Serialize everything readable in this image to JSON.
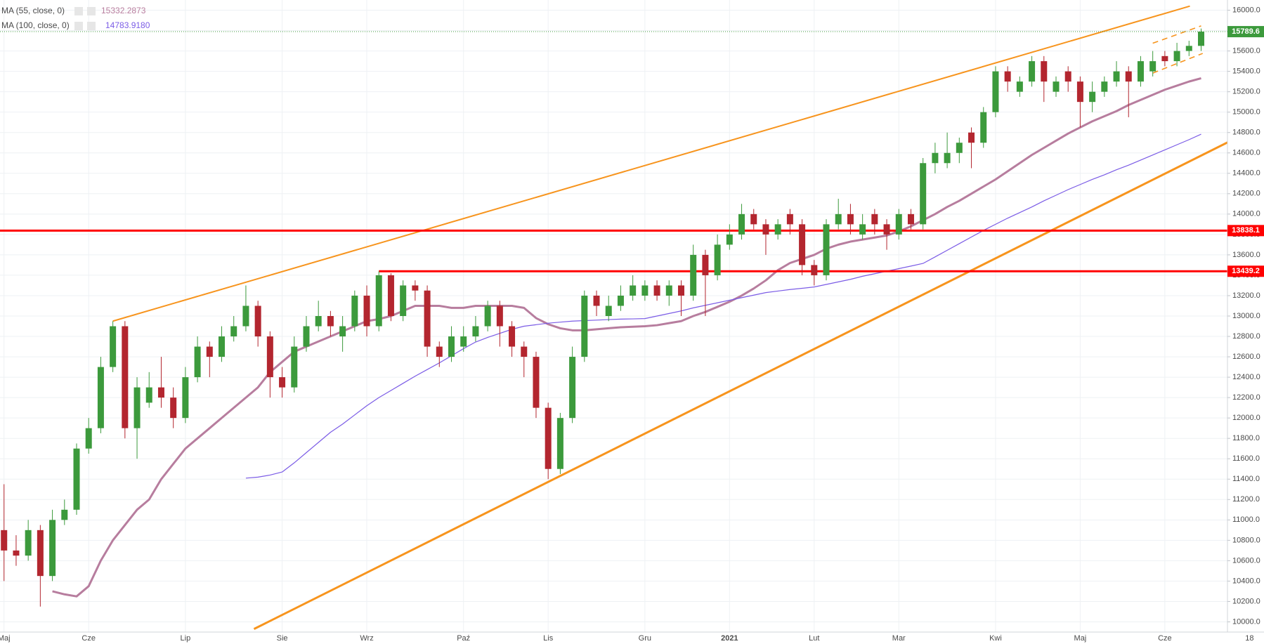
{
  "chart_data": {
    "type": "candlestick",
    "categories": [
      "Maj",
      null,
      null,
      null,
      null,
      null,
      null,
      "Cze",
      null,
      null,
      null,
      null,
      null,
      null,
      null,
      "Lip",
      null,
      null,
      null,
      null,
      null,
      null,
      null,
      "Sie",
      null,
      null,
      null,
      null,
      null,
      null,
      "Wrz",
      null,
      null,
      null,
      null,
      null,
      null,
      null,
      "Paź",
      null,
      null,
      null,
      null,
      null,
      null,
      "Lis",
      null,
      null,
      null,
      null,
      null,
      null,
      null,
      "Gru",
      null,
      null,
      null,
      null,
      null,
      null,
      "2021",
      null,
      null,
      null,
      null,
      null,
      null,
      "Lut",
      null,
      null,
      null,
      null,
      null,
      null,
      "Mar",
      null,
      null,
      null,
      null,
      null,
      null,
      null,
      "Kwi",
      null,
      null,
      null,
      null,
      null,
      null,
      "Maj",
      null,
      null,
      null,
      null,
      null,
      null,
      "Cze",
      null,
      null,
      null,
      null,
      null,
      null,
      "18"
    ],
    "open": [
      10900,
      10700,
      10650,
      10900,
      10450,
      11000,
      11100,
      11700,
      11900,
      12500,
      12900,
      11900,
      12150,
      12300,
      12200,
      12000,
      12400,
      12700,
      12600,
      12800,
      12900,
      13100,
      12800,
      12400,
      12300,
      12700,
      12900,
      13000,
      12800,
      12900,
      13200,
      12900,
      13400,
      13000,
      13300,
      13250,
      12700,
      12600,
      12700,
      12800,
      12900,
      13100,
      12900,
      12700,
      12600,
      12100,
      11500,
      12000,
      12600,
      13200,
      13000,
      13100,
      13200,
      13200,
      13300,
      13200,
      13300,
      13200,
      13600,
      13400,
      13700,
      13800,
      14000,
      13900,
      13800,
      14000,
      13900,
      13500,
      13400,
      13900,
      14000,
      13800,
      14000,
      13900,
      13800,
      14000,
      13900,
      14500,
      14500,
      14600,
      14800,
      14700,
      15000,
      15400,
      15200,
      15300,
      15500,
      15200,
      15400,
      15300,
      15100,
      15200,
      15300,
      15400,
      15300,
      15400,
      15550,
      15500,
      15600,
      15650,
      null,
      null,
      null,
      null
    ],
    "high": [
      11350,
      10850,
      11000,
      10950,
      11100,
      11200,
      11750,
      12000,
      12600,
      12950,
      12950,
      12400,
      12450,
      12600,
      12300,
      12500,
      12800,
      12750,
      12900,
      13000,
      13300,
      13150,
      12850,
      12500,
      12800,
      13000,
      13150,
      13050,
      13000,
      13250,
      13300,
      13439.2,
      13420,
      13350,
      13350,
      13300,
      12750,
      12900,
      12900,
      13000,
      13150,
      13150,
      12950,
      12750,
      12650,
      12150,
      12050,
      12700,
      13250,
      13250,
      13200,
      13300,
      13400,
      13350,
      13350,
      13350,
      13350,
      13700,
      13650,
      13800,
      13900,
      14100,
      14050,
      13950,
      13950,
      14050,
      13950,
      13550,
      13950,
      14150,
      14100,
      14000,
      14050,
      13950,
      14050,
      14050,
      14550,
      14700,
      14800,
      14750,
      14850,
      15050,
      15450,
      15450,
      15350,
      15550,
      15550,
      15350,
      15450,
      15350,
      15300,
      15350,
      15500,
      15450,
      15550,
      15600,
      15600,
      15680,
      15700,
      15820,
      null,
      null,
      null,
      null
    ],
    "low": [
      10400,
      10550,
      10600,
      10150,
      10400,
      10950,
      11050,
      11650,
      11850,
      12450,
      11800,
      11600,
      12100,
      12100,
      11900,
      11950,
      12350,
      12400,
      12550,
      12750,
      12850,
      12700,
      12200,
      12200,
      12250,
      12650,
      12850,
      12800,
      12650,
      12850,
      12800,
      12850,
      12950,
      12950,
      13150,
      12600,
      12500,
      12550,
      12650,
      12750,
      12850,
      12700,
      12600,
      12400,
      12000,
      11400,
      11450,
      11950,
      12550,
      13000,
      12950,
      13050,
      13150,
      13150,
      13150,
      13100,
      13000,
      13150,
      13000,
      13350,
      13650,
      13750,
      13850,
      13600,
      13750,
      13800,
      13400,
      13300,
      13350,
      13850,
      13800,
      13750,
      13800,
      13650,
      13750,
      13850,
      13850,
      14400,
      14450,
      14500,
      14450,
      14650,
      14950,
      15200,
      15150,
      15250,
      15100,
      15150,
      15200,
      14850,
      15000,
      15150,
      15250,
      14950,
      15250,
      15350,
      15450,
      15450,
      15550,
      15600,
      null,
      null,
      null,
      null
    ],
    "close": [
      10700,
      10650,
      10900,
      10450,
      11000,
      11100,
      11700,
      11900,
      12500,
      12900,
      11900,
      12300,
      12300,
      12200,
      12000,
      12400,
      12700,
      12600,
      12800,
      12900,
      13100,
      12800,
      12400,
      12300,
      12700,
      12900,
      13000,
      12900,
      12900,
      13200,
      12900,
      13400,
      13000,
      13300,
      13250,
      12700,
      12600,
      12800,
      12800,
      12900,
      13100,
      12900,
      12700,
      12600,
      12100,
      11500,
      12000,
      12600,
      13200,
      13100,
      13100,
      13200,
      13300,
      13300,
      13200,
      13300,
      13200,
      13600,
      13400,
      13700,
      13800,
      14000,
      13900,
      13800,
      13900,
      13900,
      13500,
      13400,
      13900,
      14000,
      13900,
      13900,
      13900,
      13800,
      14000,
      13900,
      14500,
      14600,
      14600,
      14700,
      14700,
      15000,
      15400,
      15300,
      15300,
      15500,
      15300,
      15300,
      15300,
      15100,
      15200,
      15300,
      15400,
      15300,
      15500,
      15500,
      15500,
      15600,
      15650,
      15789.6,
      null,
      null,
      null,
      null
    ],
    "up_color": "#3c9a3c",
    "down_color": "#b3262f",
    "ylim": [
      9900,
      16100
    ],
    "yticks": [
      {
        "value": 10000,
        "label": "10000.0"
      },
      {
        "value": 10200,
        "label": "10200.0"
      },
      {
        "value": 10400,
        "label": "10400.0"
      },
      {
        "value": 10600,
        "label": "10600.0"
      },
      {
        "value": 10800,
        "label": "10800.0"
      },
      {
        "value": 11000,
        "label": "11000.0"
      },
      {
        "value": 11200,
        "label": "11200.0"
      },
      {
        "value": 11400,
        "label": "11400.0"
      },
      {
        "value": 11600,
        "label": "11600.0"
      },
      {
        "value": 11800,
        "label": "11800.0"
      },
      {
        "value": 12000,
        "label": "12000.0"
      },
      {
        "value": 12200,
        "label": "12200.0"
      },
      {
        "value": 12400,
        "label": "12400.0"
      },
      {
        "value": 12600,
        "label": "12600.0"
      },
      {
        "value": 12800,
        "label": "12800.0"
      },
      {
        "value": 13000,
        "label": "13000.0"
      },
      {
        "value": 13200,
        "label": "13200.0"
      },
      {
        "value": 13400,
        "label": "13400.0"
      },
      {
        "value": 13600,
        "label": "13600.0"
      },
      {
        "value": 13800,
        "label": "13800.0"
      },
      {
        "value": 14000,
        "label": "14000.0"
      },
      {
        "value": 14200,
        "label": "14200.0"
      },
      {
        "value": 14400,
        "label": "14400.0"
      },
      {
        "value": 14600,
        "label": "14600.0"
      },
      {
        "value": 14800,
        "label": "14800.0"
      },
      {
        "value": 15000,
        "label": "15000.0"
      },
      {
        "value": 15200,
        "label": "15200.0"
      },
      {
        "value": 15400,
        "label": "15400.0"
      },
      {
        "value": 15600,
        "label": "15600.0"
      },
      {
        "value": 15800,
        "label": "15800.0"
      },
      {
        "value": 16000,
        "label": "16000.0"
      }
    ],
    "grid": true,
    "series": [
      {
        "name": "MA (55, close, 0)",
        "color": "#b77d9e",
        "values": [
          null,
          null,
          null,
          null,
          10300,
          10270,
          10250,
          10350,
          10600,
          10800,
          10950,
          11100,
          11200,
          11400,
          11550,
          11700,
          11800,
          11900,
          12000,
          12100,
          12200,
          12300,
          12450,
          12550,
          12650,
          12700,
          12750,
          12800,
          12850,
          12900,
          12950,
          12970,
          13000,
          13050,
          13100,
          13100,
          13100,
          13080,
          13080,
          13100,
          13100,
          13100,
          13100,
          13080,
          12980,
          12920,
          12880,
          12860,
          12860,
          12870,
          12880,
          12890,
          12895,
          12900,
          12910,
          12930,
          12950,
          13000,
          13040,
          13090,
          13140,
          13200,
          13270,
          13350,
          13450,
          13520,
          13560,
          13600,
          13660,
          13700,
          13730,
          13750,
          13770,
          13790,
          13830,
          13880,
          13940,
          14000,
          14070,
          14130,
          14200,
          14270,
          14340,
          14420,
          14500,
          14580,
          14650,
          14720,
          14790,
          14850,
          14910,
          14960,
          15010,
          15070,
          15120,
          15170,
          15220,
          15260,
          15300,
          15332.2873,
          null,
          null,
          null,
          null
        ]
      },
      {
        "name": "MA (100, close, 0)",
        "color": "#7b5ce6",
        "last_value_label": "14783.9180",
        "values": [
          null,
          null,
          null,
          null,
          null,
          null,
          null,
          null,
          null,
          null,
          null,
          null,
          null,
          null,
          null,
          null,
          null,
          null,
          null,
          null,
          11410,
          11420,
          11440,
          11470,
          11560,
          11660,
          11760,
          11860,
          11940,
          12030,
          12120,
          12200,
          12270,
          12340,
          12410,
          12475,
          12540,
          12610,
          12680,
          12745,
          12790,
          12830,
          12870,
          12900,
          12915,
          12930,
          12940,
          12950,
          12955,
          12960,
          12965,
          12970,
          12972,
          12975,
          13000,
          13025,
          13050,
          13080,
          13105,
          13130,
          13155,
          13180,
          13205,
          13230,
          13245,
          13260,
          13272,
          13285,
          13310,
          13335,
          13360,
          13390,
          13415,
          13440,
          13465,
          13490,
          13516,
          13580,
          13645,
          13710,
          13775,
          13840,
          13900,
          13960,
          14015,
          14070,
          14130,
          14185,
          14240,
          14290,
          14340,
          14385,
          14435,
          14480,
          14530,
          14580,
          14630,
          14680,
          14730,
          14783.918,
          null,
          null,
          null,
          null
        ]
      }
    ],
    "hlines": [
      {
        "value": 13838.1,
        "color": "#ff0000"
      },
      {
        "value": 13439.2,
        "color": "#ff0000"
      }
    ],
    "trendlines": [
      {
        "color": "#f7941d",
        "style": "solid",
        "points": [
          [
            9,
            12950
          ],
          [
            98.07,
            16040
          ]
        ]
      },
      {
        "color": "#f7941d",
        "style": "thick",
        "points": [
          [
            20.67,
            9930
          ],
          [
            104.2,
            14882
          ]
        ]
      },
      {
        "color": "#f7941d",
        "style": "dashed",
        "points": [
          [
            95,
            15676
          ],
          [
            99,
            15846
          ]
        ]
      },
      {
        "color": "#f7941d",
        "style": "dashed",
        "points": [
          [
            95,
            15383
          ],
          [
            99.13,
            15576
          ]
        ]
      }
    ]
  }
}
